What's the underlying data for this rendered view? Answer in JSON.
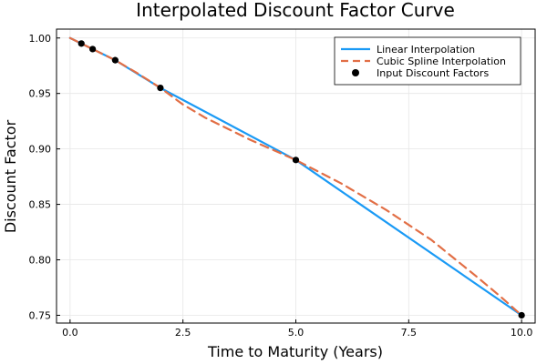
{
  "chart_data": {
    "type": "line",
    "title": "Interpolated Discount Factor Curve",
    "xlabel": "Time to Maturity (Years)",
    "ylabel": "Discount Factor",
    "xlim": [
      -0.3,
      10.3
    ],
    "ylim": [
      0.743,
      1.008
    ],
    "xticks": [
      0.0,
      2.5,
      5.0,
      7.5,
      10.0
    ],
    "xtick_labels": [
      "0.0",
      "2.5",
      "5.0",
      "7.5",
      "10.0"
    ],
    "yticks": [
      0.75,
      0.8,
      0.85,
      0.9,
      0.95,
      1.0
    ],
    "ytick_labels": [
      "0.75",
      "0.80",
      "0.85",
      "0.90",
      "0.95",
      "1.00"
    ],
    "grid": true,
    "legend_position": "top-right",
    "series": [
      {
        "name": "Linear Interpolation",
        "style": "solid",
        "color": "#1a9af5",
        "x": [
          0.0,
          0.25,
          0.5,
          1.0,
          2.0,
          5.0,
          10.0
        ],
        "y": [
          1.0,
          0.995,
          0.99,
          0.98,
          0.955,
          0.89,
          0.75
        ]
      },
      {
        "name": "Cubic Spline Interpolation",
        "style": "dashed",
        "color": "#e26f46",
        "x": [
          0.0,
          0.25,
          0.5,
          1.0,
          1.5,
          2.0,
          2.5,
          3.0,
          4.0,
          5.0,
          6.0,
          7.0,
          8.0,
          9.0,
          9.5,
          10.0
        ],
        "y": [
          1.0,
          0.995,
          0.99,
          0.98,
          0.968,
          0.955,
          0.94,
          0.928,
          0.908,
          0.89,
          0.869,
          0.845,
          0.818,
          0.785,
          0.768,
          0.75
        ]
      },
      {
        "name": "Input Discount Factors",
        "style": "markers",
        "color": "#000000",
        "x": [
          0.25,
          0.5,
          1.0,
          2.0,
          5.0,
          10.0
        ],
        "y": [
          0.995,
          0.99,
          0.98,
          0.955,
          0.89,
          0.75
        ]
      }
    ]
  }
}
